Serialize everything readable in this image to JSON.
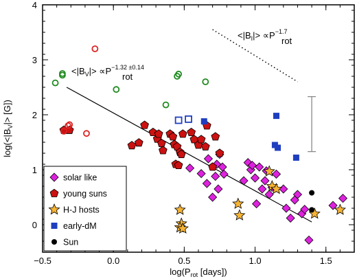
{
  "chart_data": {
    "type": "scatter",
    "xlabel": "log(P",
    "xlabel_sub": "rot",
    "xlabel_end": " [days])",
    "ylabel": "log(<|B",
    "ylabel_sub": "V",
    "ylabel_end": "|> [G])",
    "xlim": [
      -0.5,
      1.7
    ],
    "ylim": [
      -0.5,
      4.0
    ],
    "xticks": [
      -0.5,
      0.0,
      0.5,
      1.0,
      1.5
    ],
    "xtick_labels": [
      "−0.5",
      "0.0",
      "0.5",
      "1.0",
      "1.5"
    ],
    "yticks": [
      0,
      1,
      2,
      3,
      4
    ],
    "ytick_labels": [
      "0",
      "1",
      "2",
      "3",
      "4"
    ],
    "grid": false,
    "legend_position": "bottom-left",
    "legend": [
      {
        "label": "solar like",
        "marker": "diamond",
        "color": "#dd22dd"
      },
      {
        "label": "young suns",
        "marker": "pentagon",
        "color": "#cc1111"
      },
      {
        "label": "H-J hosts",
        "marker": "star",
        "color": "#f5b335"
      },
      {
        "label": "early-dM",
        "marker": "square",
        "color": "#1f3fbf"
      },
      {
        "label": "Sun",
        "marker": "circle",
        "color": "#000000"
      }
    ],
    "annotations": {
      "bv_pre": "<|B",
      "bv_sub": "V",
      "bv_mid": "|> ∝P",
      "bv_sub2": "rot",
      "bv_exp": "−1.32 ±0.14",
      "bi_pre": "<|B",
      "bi_sub": "I",
      "bi_mid": "|> ∝P",
      "bi_sub2": "rot",
      "bi_exp": "−1.7"
    },
    "fit_line": {
      "x": [
        -0.33,
        1.4
      ],
      "y": [
        2.5,
        0.05
      ]
    },
    "slope_line": {
      "x": [
        0.7,
        1.3
      ],
      "y": [
        3.55,
        2.6
      ]
    },
    "error_bar": {
      "x": 1.4,
      "y_low": 1.33,
      "y_high": 2.33
    },
    "series": [
      {
        "name": "solar like",
        "marker": "diamond",
        "color": "#dd22dd",
        "x": [
          0.54,
          0.62,
          0.66,
          0.67,
          0.7,
          0.72,
          0.73,
          0.74,
          0.75,
          0.77,
          0.78,
          0.92,
          0.95,
          0.97,
          0.98,
          1.0,
          1.01,
          1.03,
          1.05,
          1.07,
          1.08,
          1.1,
          1.12,
          1.15,
          1.2,
          1.22,
          1.25,
          1.28,
          1.3,
          1.33,
          1.35,
          1.38,
          1.55,
          1.62
        ],
        "y": [
          1.03,
          0.93,
          0.75,
          1.2,
          0.5,
          0.88,
          1.1,
          0.65,
          1.28,
          1.05,
          0.92,
          0.8,
          1.13,
          1.0,
          1.08,
          0.85,
          0.38,
          1.05,
          0.65,
          0.8,
          0.98,
          0.55,
          0.68,
          0.92,
          0.65,
          0.3,
          0.12,
          0.45,
          0.55,
          0.2,
          0.28,
          -0.28,
          0.35,
          0.48
        ]
      },
      {
        "name": "young suns",
        "marker": "pentagon",
        "color": "#cc1111",
        "x": [
          -0.35,
          -0.31,
          0.13,
          0.18,
          0.22,
          0.28,
          0.31,
          0.32,
          0.34,
          0.35,
          0.4,
          0.42,
          0.43,
          0.44,
          0.45,
          0.46,
          0.47,
          0.48,
          0.49,
          0.55,
          0.57,
          0.6,
          0.62,
          0.65,
          0.66,
          0.7,
          0.72,
          0.75
        ],
        "y": [
          1.72,
          1.72,
          1.44,
          1.49,
          1.81,
          1.68,
          1.56,
          1.65,
          1.48,
          1.35,
          1.65,
          1.6,
          1.46,
          1.1,
          1.42,
          1.08,
          1.32,
          1.28,
          1.65,
          1.68,
          1.55,
          1.45,
          1.55,
          1.42,
          1.8,
          1.05,
          1.6,
          1.3
        ]
      },
      {
        "name": "H-J hosts",
        "marker": "star",
        "color": "#f5b335",
        "x": [
          0.47,
          0.48,
          0.47,
          0.49,
          0.88,
          0.89,
          1.1,
          1.12,
          1.15,
          1.42,
          1.6
        ],
        "y": [
          0.27,
          0.02,
          -0.05,
          -0.07,
          0.38,
          0.17,
          0.97,
          0.7,
          0.65,
          0.2,
          0.27
        ]
      },
      {
        "name": "early-dM",
        "marker": "square",
        "color": "#1f3fbf",
        "x": [
          0.64,
          1.15,
          1.14,
          1.16,
          1.29
        ],
        "y": [
          1.88,
          1.98,
          1.45,
          1.4,
          1.22
        ]
      },
      {
        "name": "early-dM (open)",
        "marker": "square-open",
        "color": "#1f3fbf",
        "x": [
          0.46,
          0.53
        ],
        "y": [
          1.9,
          1.92
        ]
      },
      {
        "name": "Sun",
        "marker": "circle",
        "color": "#000000",
        "x": [
          1.4,
          1.4
        ],
        "y": [
          0.58,
          0.27
        ]
      },
      {
        "name": "open red circles",
        "marker": "circle-open",
        "color": "#dd2222",
        "x": [
          -0.35,
          -0.32,
          -0.31,
          -0.19,
          -0.13
        ],
        "y": [
          1.7,
          1.8,
          1.82,
          1.66,
          3.2
        ]
      },
      {
        "name": "open green circles",
        "marker": "circle-open",
        "color": "#1f8a1f",
        "x": [
          -0.41,
          -0.36,
          -0.36,
          0.02,
          0.37,
          0.45,
          0.46,
          0.65
        ],
        "y": [
          2.58,
          2.72,
          2.75,
          2.46,
          2.18,
          2.7,
          2.74,
          2.6
        ]
      }
    ]
  }
}
